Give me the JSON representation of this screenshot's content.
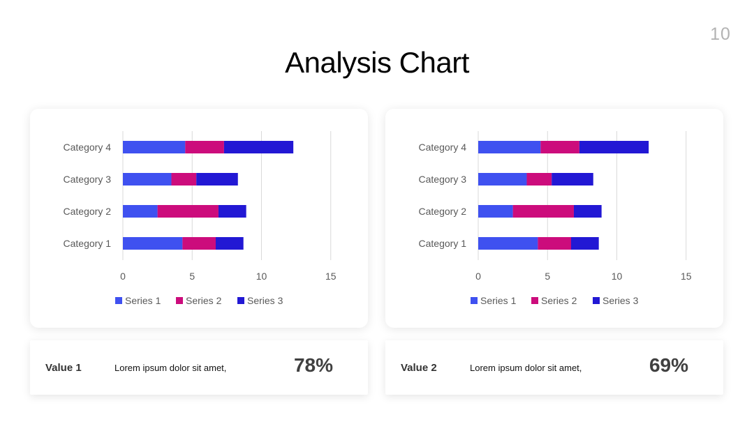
{
  "slide": {
    "page_number": "10",
    "title": "Analysis Chart"
  },
  "colors": {
    "series_1": "#3f51f0",
    "series_2": "#cc0c7c",
    "series_3": "#2218d4"
  },
  "chart_data": [
    {
      "type": "bar",
      "orientation": "horizontal",
      "stacked": true,
      "categories": [
        "Category 1",
        "Category 2",
        "Category 3",
        "Category 4"
      ],
      "series": [
        {
          "name": "Series 1",
          "values": [
            4.3,
            2.5,
            3.5,
            4.5
          ]
        },
        {
          "name": "Series 2",
          "values": [
            2.4,
            4.4,
            1.8,
            2.8
          ]
        },
        {
          "name": "Series 3",
          "values": [
            2.0,
            2.0,
            3.0,
            5.0
          ]
        }
      ],
      "xlim": [
        0,
        15
      ],
      "xticks": [
        "0",
        "5",
        "10",
        "15"
      ],
      "grid": true,
      "legend": "bottom"
    },
    {
      "type": "bar",
      "orientation": "horizontal",
      "stacked": true,
      "categories": [
        "Category 1",
        "Category 2",
        "Category 3",
        "Category 4"
      ],
      "series": [
        {
          "name": "Series 1",
          "values": [
            4.3,
            2.5,
            3.5,
            4.5
          ]
        },
        {
          "name": "Series 2",
          "values": [
            2.4,
            4.4,
            1.8,
            2.8
          ]
        },
        {
          "name": "Series 3",
          "values": [
            2.0,
            2.0,
            3.0,
            5.0
          ]
        }
      ],
      "xlim": [
        0,
        15
      ],
      "xticks": [
        "0",
        "5",
        "10",
        "15"
      ],
      "grid": true,
      "legend": "bottom"
    }
  ],
  "values": [
    {
      "label": "Value 1",
      "description": "Lorem ipsum dolor sit amet,",
      "percent": "78%"
    },
    {
      "label": "Value 2",
      "description": "Lorem ipsum dolor sit amet,",
      "percent": "69%"
    }
  ]
}
